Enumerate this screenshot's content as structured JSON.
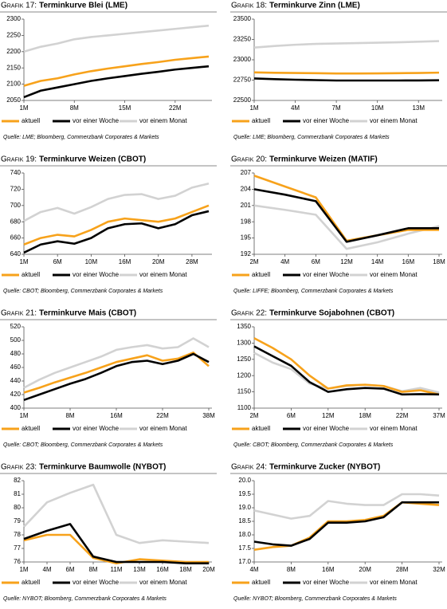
{
  "chart_data": [
    {
      "type": "line",
      "label": "Grafik 17:",
      "title": "Terminkurve Blei (LME)",
      "source": "Quelle: LME; Bloomberg, Commerzbank Corporates & Markets",
      "categories": [
        "1M",
        null,
        null,
        "8M",
        null,
        null,
        "15M",
        null,
        null,
        "22M",
        null,
        null
      ],
      "ylim": [
        2050,
        2300
      ],
      "yticks": [
        2050,
        2100,
        2150,
        2200,
        2250,
        2300
      ],
      "series": [
        {
          "name": "aktuell",
          "color": "#f7a21b",
          "values": [
            2095,
            2110,
            2118,
            2130,
            2140,
            2148,
            2155,
            2162,
            2168,
            2175,
            2180,
            2185
          ]
        },
        {
          "name": "vor einer Woche",
          "color": "#000000",
          "values": [
            2060,
            2080,
            2090,
            2100,
            2110,
            2118,
            2125,
            2132,
            2138,
            2145,
            2150,
            2155
          ]
        },
        {
          "name": "vor einem Monat",
          "color": "#d2d2d2",
          "values": [
            2200,
            2215,
            2225,
            2238,
            2245,
            2250,
            2255,
            2260,
            2265,
            2270,
            2275,
            2280
          ]
        }
      ]
    },
    {
      "type": "line",
      "label": "Grafik 18:",
      "title": "Terminkurve Zinn (LME)",
      "source": "Quelle: LME; Bloomberg, Commerzbank Corporates & Markets",
      "categories": [
        "1M",
        null,
        "4M",
        null,
        "7M",
        null,
        "10M",
        null,
        "13M",
        null
      ],
      "ylim": [
        22500,
        23500
      ],
      "yticks": [
        22500,
        22750,
        23000,
        23250,
        23500
      ],
      "series": [
        {
          "name": "aktuell",
          "color": "#f7a21b",
          "values": [
            22845,
            22840,
            22838,
            22835,
            22832,
            22832,
            22833,
            22835,
            22838,
            22842
          ]
        },
        {
          "name": "vor einer Woche",
          "color": "#000000",
          "values": [
            22770,
            22762,
            22755,
            22750,
            22745,
            22745,
            22745,
            22745,
            22746,
            22748
          ]
        },
        {
          "name": "vor einem Monat",
          "color": "#d2d2d2",
          "values": [
            23150,
            23170,
            23185,
            23195,
            23200,
            23205,
            23210,
            23215,
            23222,
            23230
          ]
        }
      ]
    },
    {
      "type": "line",
      "label": "Grafik 19:",
      "title": "Terminkurve Weizen (CBOT)",
      "source": "Quelle: CBOT; Bloomberg, Commerzbank Corporates & Markets",
      "categories": [
        "1M",
        null,
        "6M",
        null,
        "10M",
        null,
        "16M",
        null,
        "20M",
        null,
        "28M",
        null
      ],
      "ylim": [
        640,
        740
      ],
      "yticks": [
        640,
        660,
        680,
        700,
        720,
        740
      ],
      "series": [
        {
          "name": "aktuell",
          "color": "#f7a21b",
          "values": [
            652,
            660,
            664,
            662,
            670,
            680,
            684,
            682,
            680,
            684,
            692,
            700
          ]
        },
        {
          "name": "vor einer Woche",
          "color": "#000000",
          "values": [
            642,
            652,
            656,
            653,
            660,
            672,
            677,
            678,
            672,
            677,
            688,
            693
          ]
        },
        {
          "name": "vor einem Monat",
          "color": "#d2d2d2",
          "values": [
            681,
            692,
            697,
            690,
            698,
            708,
            713,
            714,
            708,
            712,
            722,
            727
          ]
        }
      ]
    },
    {
      "type": "line",
      "label": "Grafik 20:",
      "title": "Terminkurve Weizen (MATIF)",
      "source": "Quelle: LIFFE; Bloomberg, Commerzbank Corporates & Markets",
      "categories": [
        "2M",
        "4M",
        "6M",
        "12M",
        "14M",
        "16M",
        "18M"
      ],
      "ylim": [
        192,
        207
      ],
      "yticks": [
        192,
        195,
        198,
        201,
        204,
        207
      ],
      "series": [
        {
          "name": "aktuell",
          "color": "#f7a21b",
          "values": [
            206.5,
            204.5,
            202.5,
            194.5,
            195.5,
            196.5,
            196.5
          ]
        },
        {
          "name": "vor einer Woche",
          "color": "#000000",
          "values": [
            204,
            203,
            201.8,
            194.3,
            195.5,
            196.8,
            196.8
          ]
        },
        {
          "name": "vor einem Monat",
          "color": "#d2d2d2",
          "values": [
            201,
            200.2,
            199.3,
            193,
            194.2,
            195.8,
            197.2
          ]
        }
      ]
    },
    {
      "type": "line",
      "label": "Grafik 21:",
      "title": "Terminkurve Mais (CBOT)",
      "source": "Quelle: CBOT; Bloomberg, Commerzbank Corporates & Markets",
      "categories": [
        "1M",
        null,
        null,
        "8M",
        null,
        null,
        "16M",
        null,
        null,
        "22M",
        null,
        null,
        "38M"
      ],
      "ylim": [
        400,
        520
      ],
      "yticks": [
        400,
        420,
        440,
        460,
        480,
        500,
        520
      ],
      "series": [
        {
          "name": "aktuell",
          "color": "#f7a21b",
          "values": [
            423,
            430,
            438,
            445,
            452,
            460,
            468,
            473,
            478,
            470,
            473,
            482,
            462
          ]
        },
        {
          "name": "vor einer Woche",
          "color": "#000000",
          "values": [
            412,
            420,
            428,
            436,
            443,
            452,
            462,
            468,
            470,
            465,
            470,
            480,
            468
          ]
        },
        {
          "name": "vor einem Monat",
          "color": "#d2d2d2",
          "values": [
            430,
            442,
            452,
            460,
            468,
            476,
            486,
            490,
            493,
            488,
            490,
            503,
            490
          ]
        }
      ]
    },
    {
      "type": "line",
      "label": "Grafik 22:",
      "title": "Terminkurve Sojabohnen (CBOT)",
      "source": "Quelle: CBOT; Bloomberg, Commerzbank Corporates & Markets",
      "categories": [
        "2M",
        null,
        "6M",
        null,
        "12M",
        null,
        "18M",
        null,
        "22M",
        null,
        "37M"
      ],
      "ylim": [
        1100,
        1350
      ],
      "yticks": [
        1100,
        1150,
        1200,
        1250,
        1300,
        1350
      ],
      "series": [
        {
          "name": "aktuell",
          "color": "#f7a21b",
          "values": [
            1315,
            1285,
            1250,
            1200,
            1160,
            1170,
            1172,
            1168,
            1150,
            1155,
            1142
          ]
        },
        {
          "name": "vor einer Woche",
          "color": "#000000",
          "values": [
            1290,
            1260,
            1230,
            1180,
            1150,
            1158,
            1162,
            1160,
            1142,
            1143,
            1142
          ]
        },
        {
          "name": "vor einem Monat",
          "color": "#d2d2d2",
          "values": [
            1270,
            1240,
            1220,
            1175,
            1160,
            1168,
            1172,
            1168,
            1152,
            1162,
            1148
          ]
        }
      ]
    },
    {
      "type": "line",
      "label": "Grafik 23:",
      "title": "Terminkurve Baumwolle (NYBOT)",
      "source": "Quelle: NYBOT; Bloomberg, Commerzbank Corporates & Markets",
      "categories": [
        "1M",
        "4M",
        "6M",
        "8M",
        "11M",
        "13M",
        "16M",
        "18M",
        "20M"
      ],
      "ylim": [
        76,
        82
      ],
      "yticks": [
        76,
        77,
        78,
        79,
        80,
        81,
        82
      ],
      "series": [
        {
          "name": "aktuell",
          "color": "#f7a21b",
          "values": [
            77.6,
            78.0,
            78.0,
            76.3,
            75.9,
            76.2,
            76.1,
            76.0,
            76.0
          ]
        },
        {
          "name": "vor einer Woche",
          "color": "#000000",
          "values": [
            77.7,
            78.3,
            78.8,
            76.4,
            76.0,
            76.0,
            76.0,
            75.9,
            75.9
          ]
        },
        {
          "name": "vor einem Monat",
          "color": "#d2d2d2",
          "values": [
            78.6,
            80.4,
            81.1,
            81.7,
            78.0,
            77.4,
            77.6,
            77.5,
            77.4
          ]
        }
      ]
    },
    {
      "type": "line",
      "label": "Grafik 24:",
      "title": "Terminkurve Zucker (NYBOT)",
      "source": "Quelle: NYBOT; Bloomberg, Commerzbank Corporates & Markets",
      "categories": [
        "4M",
        null,
        "8M",
        null,
        "16M",
        null,
        "20M",
        null,
        "28M",
        null,
        "32M"
      ],
      "ylim": [
        17,
        20
      ],
      "yticks": [
        {
          "value": 17,
          "label": "17.0"
        },
        17.5,
        {
          "value": 18,
          "label": "18.0"
        },
        18.5,
        {
          "value": 19,
          "label": "19.0"
        },
        19.5,
        {
          "value": 20,
          "label": "20.0"
        }
      ],
      "series": [
        {
          "name": "aktuell",
          "color": "#f7a21b",
          "values": [
            17.45,
            17.55,
            17.6,
            17.9,
            18.5,
            18.5,
            18.55,
            18.7,
            19.2,
            19.15,
            19.1
          ]
        },
        {
          "name": "vor einer Woche",
          "color": "#000000",
          "values": [
            17.75,
            17.65,
            17.6,
            17.85,
            18.45,
            18.45,
            18.5,
            18.65,
            19.2,
            19.2,
            19.2
          ]
        },
        {
          "name": "vor einem Monat",
          "color": "#d2d2d2",
          "values": [
            18.9,
            18.75,
            18.6,
            18.7,
            19.25,
            19.15,
            19.1,
            19.1,
            19.5,
            19.5,
            19.45
          ]
        }
      ]
    }
  ]
}
